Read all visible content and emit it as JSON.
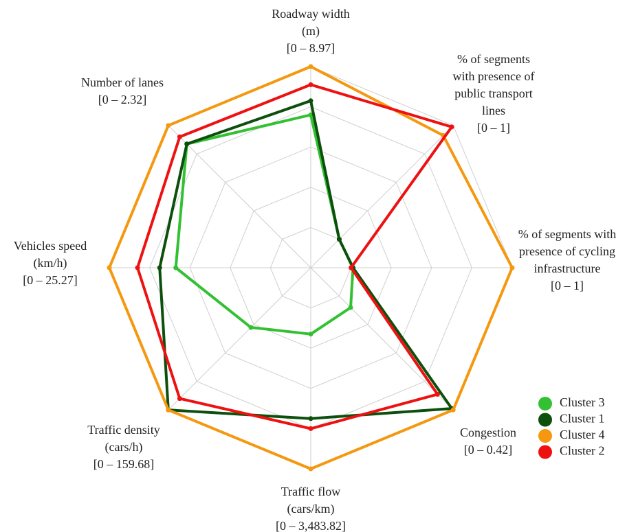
{
  "chart_data": {
    "type": "radar",
    "categories": [
      [
        "Roadway width",
        "(m)",
        "[0 – 8.97]"
      ],
      [
        "% of segments",
        "with presence of",
        "public transport",
        "lines",
        "[0 – 1]"
      ],
      [
        "% of segments with",
        "presence of cycling",
        "infrastructure",
        "[0 – 1]"
      ],
      [
        "Congestion",
        "[0 – 0.42]"
      ],
      [
        "Traffic flow",
        "(cars/km)",
        "[0 – 3,483.82]"
      ],
      [
        "Traffic density",
        "(cars/h)",
        "[0 – 159.68]"
      ],
      [
        "Vehicles speed",
        "(km/h)",
        "[0 – 25.27]"
      ],
      [
        "Number of lanes",
        "[0 – 2.32]"
      ]
    ],
    "series": [
      {
        "name": "Cluster 3",
        "color": "#33c133",
        "values": [
          0.76,
          0.2,
          0.21,
          0.28,
          0.33,
          0.42,
          0.67,
          0.87
        ]
      },
      {
        "name": "Cluster 1",
        "color": "#0d4f0d",
        "values": [
          0.83,
          0.2,
          0.21,
          0.99,
          0.75,
          1.0,
          0.75,
          0.87
        ]
      },
      {
        "name": "Cluster 4",
        "color": "#f5980f",
        "values": [
          1.0,
          0.93,
          1.0,
          1.0,
          1.0,
          1.0,
          1.0,
          1.0
        ]
      },
      {
        "name": "Cluster 2",
        "color": "#ee1111",
        "values": [
          0.91,
          0.99,
          0.2,
          0.89,
          0.8,
          0.92,
          0.86,
          0.92
        ]
      }
    ],
    "rlim": [
      0,
      1
    ],
    "rticks": [
      0.2,
      0.4,
      0.6,
      0.8,
      1.0
    ],
    "grid": true,
    "legend": "lower right"
  }
}
